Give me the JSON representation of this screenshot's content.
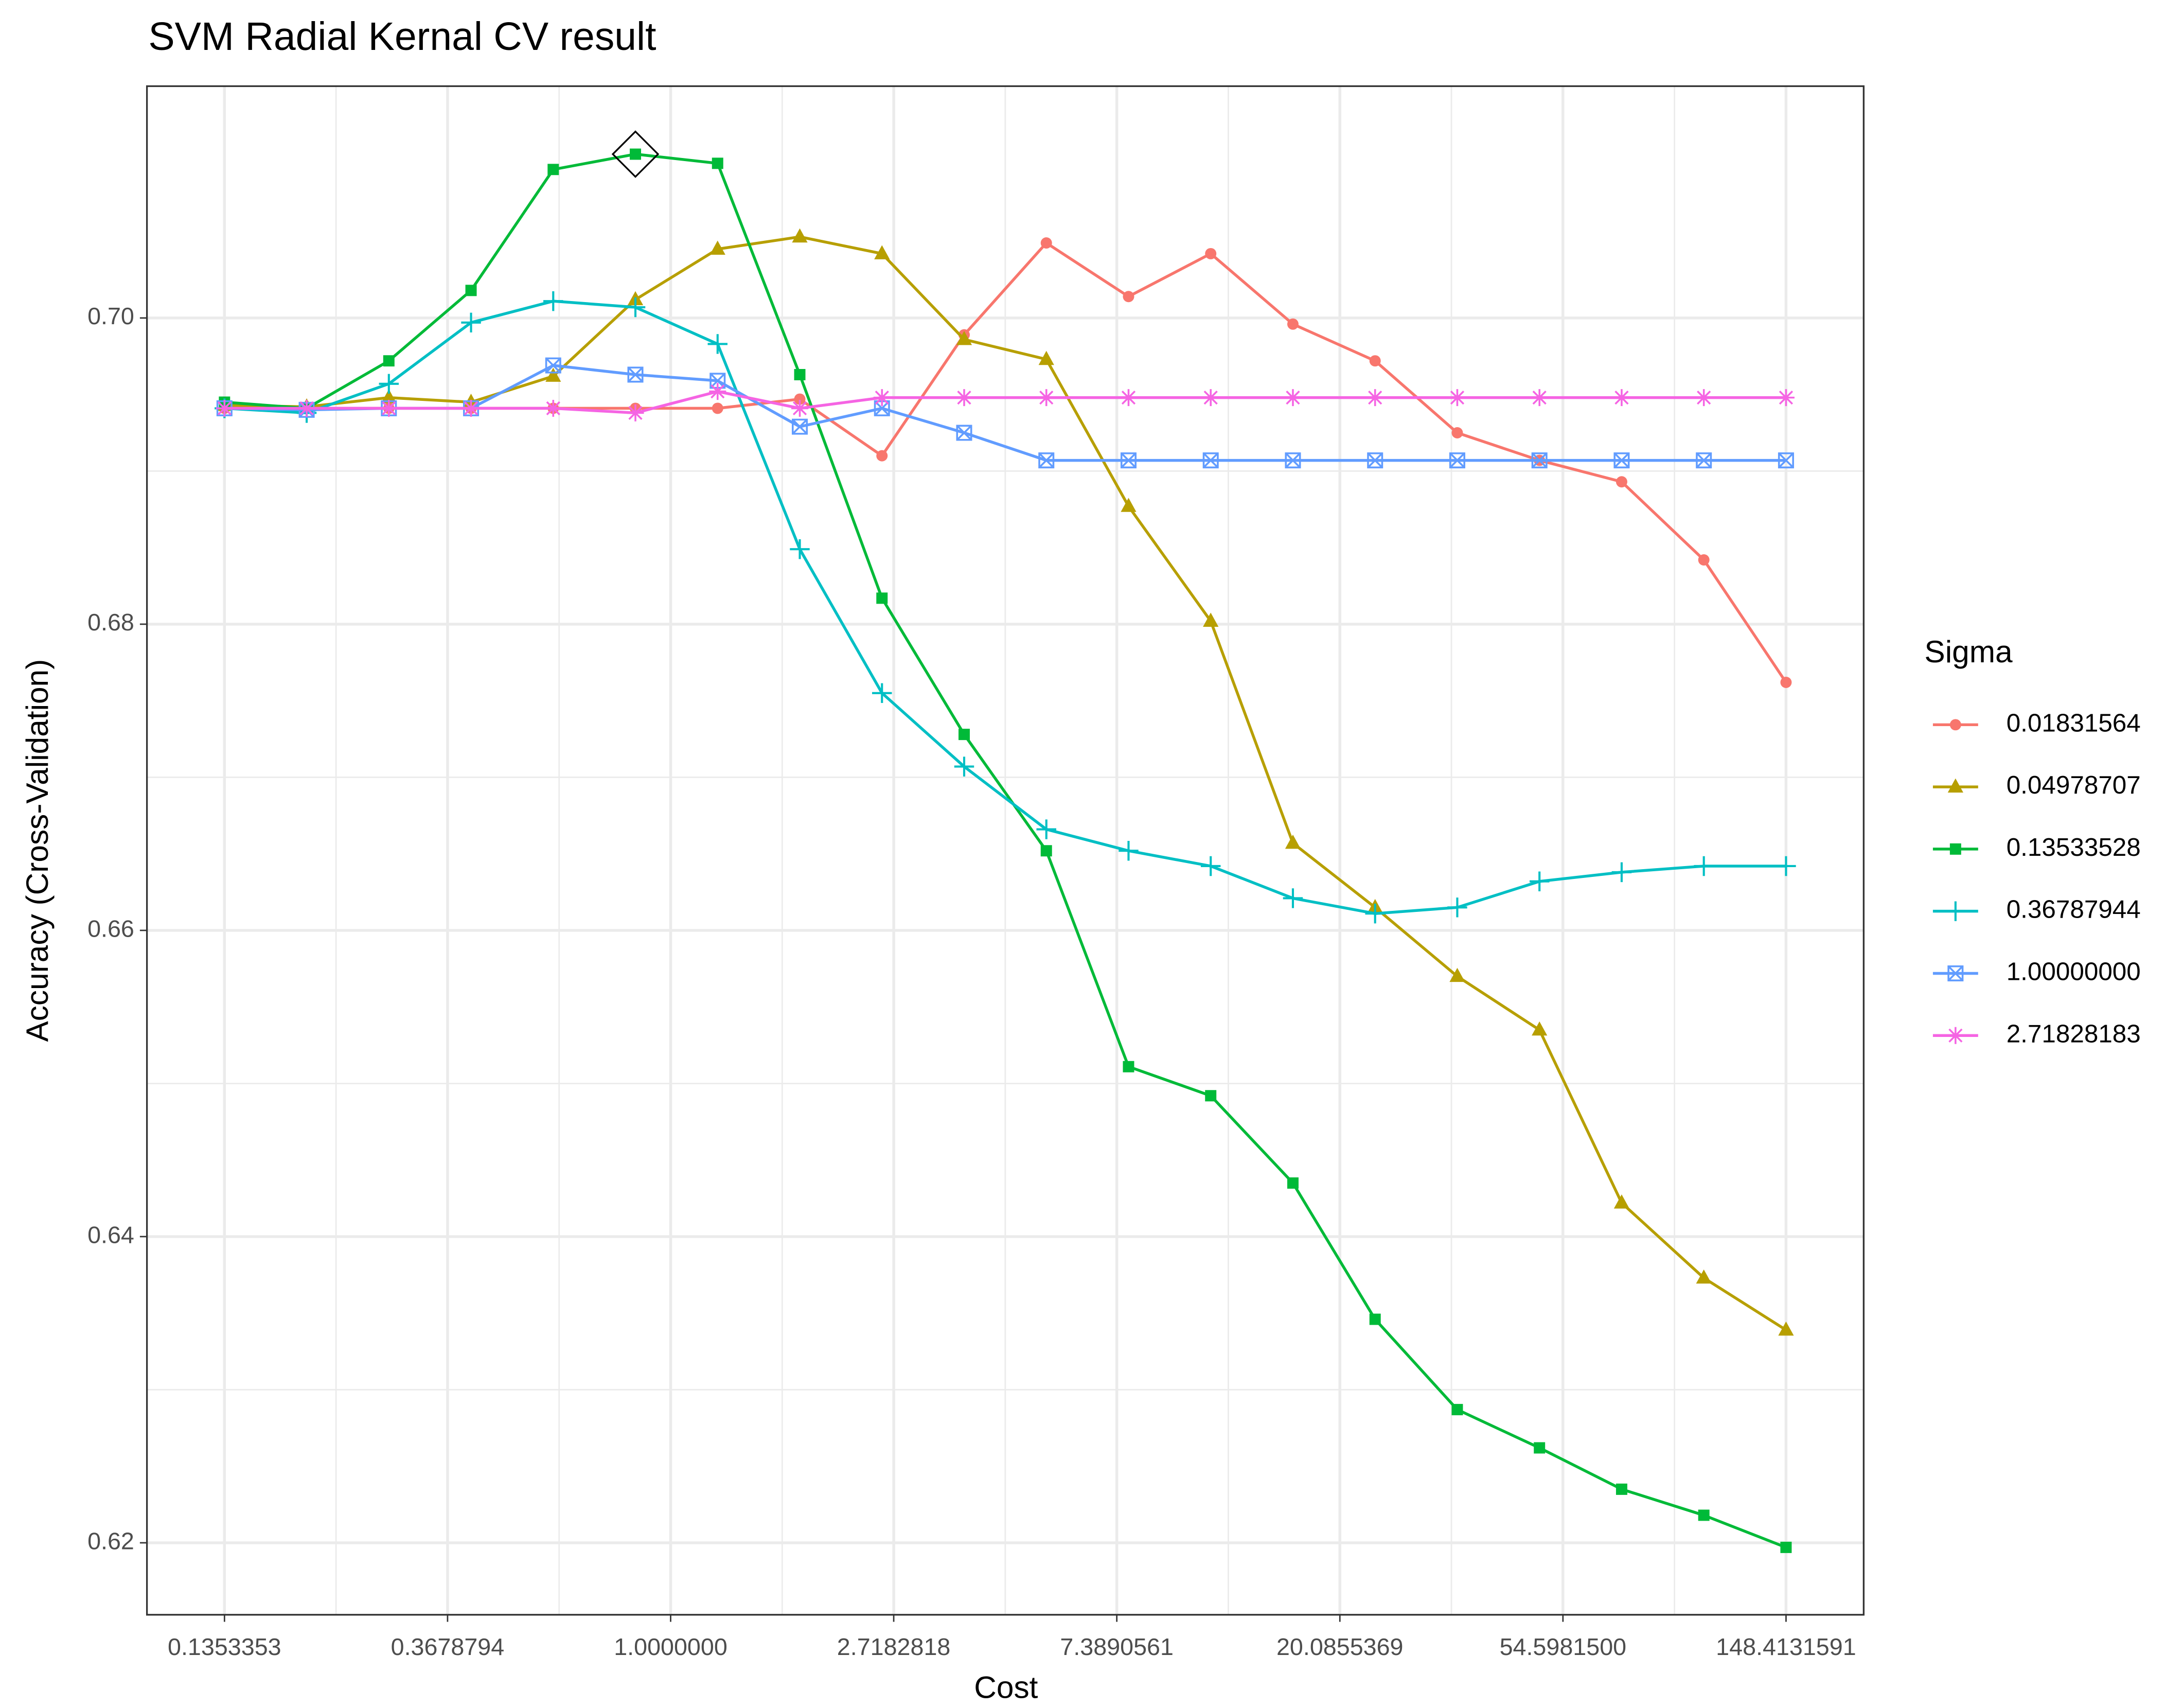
{
  "chart_data": {
    "type": "line",
    "title": "SVM Radial Kernal CV result",
    "x_label": "Cost",
    "y_label": "Accuracy (Cross-Validation)",
    "legend_title": "Sigma",
    "legend_position": "right",
    "xscale": "log",
    "grid": true,
    "x": [
      0.135335,
      0.19562,
      0.28276,
      0.40872,
      0.59078,
      0.85394,
      1.23433,
      1.78416,
      2.57891,
      3.72767,
      5.38815,
      7.78826,
      11.25757,
      16.27221,
      23.52063,
      33.99777,
      49.14209,
      71.03222,
      102.6731,
      148.41316
    ],
    "xlim": [
      0.0956,
      210.2
    ],
    "xticks": [
      0.1353353,
      0.3678794,
      {
        "value": 1,
        "label": "1.0000000"
      },
      2.7182818,
      7.3890561,
      20.0855369,
      {
        "value": 54.59815,
        "label": "54.5981500"
      },
      148.4131591
    ],
    "ylim": [
      0.6153,
      0.71514
    ],
    "yticks": [
      0.62,
      0.64,
      0.66,
      0.68,
      {
        "value": 0.7,
        "label": "0.70"
      }
    ],
    "highlight": {
      "series": 2,
      "index": 5
    },
    "series": [
      {
        "name": "0.01831564",
        "color": "#F8766D",
        "shape": "circle",
        "values": [
          0.6941,
          0.6941,
          0.6941,
          0.6941,
          0.6941,
          0.6941,
          0.6941,
          0.6947,
          0.691,
          0.6989,
          0.7049,
          0.7014,
          0.7042,
          0.6996,
          0.6972,
          0.6925,
          0.6907,
          0.6893,
          0.6842,
          0.6762
        ]
      },
      {
        "name": "0.04978707",
        "color": "#B79F00",
        "shape": "triangle",
        "values": [
          0.6943,
          0.6942,
          0.6948,
          0.6945,
          0.6962,
          0.7012,
          0.7045,
          0.7053,
          0.7042,
          0.6986,
          0.6973,
          0.6877,
          0.6802,
          0.6657,
          0.6615,
          0.657,
          0.6535,
          0.6422,
          0.6373,
          0.6339
        ]
      },
      {
        "name": "0.13533528",
        "color": "#00BA38",
        "shape": "square",
        "values": [
          0.6945,
          0.6941,
          0.6972,
          0.7018,
          0.7097,
          0.7107,
          0.7101,
          0.6963,
          0.6817,
          0.6728,
          0.6652,
          0.6511,
          0.6492,
          0.6435,
          0.6346,
          0.6287,
          0.6262,
          0.6235,
          0.6218,
          0.6197
        ]
      },
      {
        "name": "0.36787944",
        "color": "#00BFC4",
        "shape": "plus",
        "values": [
          0.6941,
          0.6938,
          0.6957,
          0.6997,
          0.7011,
          0.7007,
          0.6983,
          0.6849,
          0.6755,
          0.6707,
          0.6666,
          0.6652,
          0.6642,
          0.6621,
          0.6611,
          0.6615,
          0.6632,
          0.6638,
          0.6642,
          0.6642
        ]
      },
      {
        "name": "1.00000000",
        "color": "#619CFF",
        "shape": "boxcross",
        "values": [
          0.6941,
          0.694,
          0.6941,
          0.6941,
          0.6969,
          0.6963,
          0.6959,
          0.6929,
          0.6941,
          0.6925,
          0.6907,
          0.6907,
          0.6907,
          0.6907,
          0.6907,
          0.6907,
          0.6907,
          0.6907,
          0.6907,
          0.6907
        ]
      },
      {
        "name": "2.71828183",
        "color": "#F564E3",
        "shape": "asterisk",
        "values": [
          0.6941,
          0.6941,
          0.6941,
          0.6941,
          0.6941,
          0.6938,
          0.6952,
          0.6941,
          0.6948,
          0.6948,
          0.6948,
          0.6948,
          0.6948,
          0.6948,
          0.6948,
          0.6948,
          0.6948,
          0.6948,
          0.6948,
          0.6948
        ]
      }
    ]
  }
}
